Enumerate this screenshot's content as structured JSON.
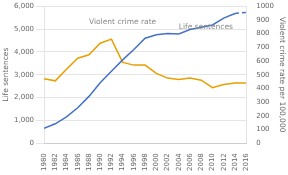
{
  "chart_data": {
    "type": "line",
    "x": [
      1980,
      1982,
      1984,
      1986,
      1988,
      1990,
      1992,
      1994,
      1996,
      1998,
      2000,
      2002,
      2004,
      2006,
      2008,
      2010,
      2012,
      2014,
      2016
    ],
    "xlim": [
      1980,
      2016
    ],
    "xticks": [
      1980,
      1982,
      1984,
      1986,
      1988,
      1990,
      1992,
      1994,
      1996,
      1998,
      2000,
      2002,
      2004,
      2006,
      2008,
      2010,
      2012,
      2014,
      2016
    ],
    "ylabel": "Life sentences",
    "ylim": [
      0,
      6000
    ],
    "yticks": [
      0,
      {
        "value": 1000,
        "label": "1,000"
      },
      {
        "value": 2000,
        "label": "2,000"
      },
      {
        "value": 3000,
        "label": "3,000"
      },
      {
        "value": 4000,
        "label": "4,000"
      },
      {
        "value": 5000,
        "label": "5,000"
      },
      {
        "value": 6000,
        "label": "6,000"
      }
    ],
    "y2label": "Violent crime rate per 100,000",
    "y2lim": [
      0,
      1000
    ],
    "y2ticks": [
      0,
      100,
      200,
      300,
      400,
      500,
      600,
      700,
      800,
      900,
      1000
    ],
    "grid": "y",
    "series": [
      {
        "name": "Life sentences",
        "color": "#4472C4",
        "line_style": "solid",
        "values": [
          650,
          850,
          1150,
          1550,
          2050,
          2650,
          3150,
          3650,
          4100,
          4600,
          4750,
          4800,
          4780,
          4980,
          5080,
          5180,
          5480,
          5680,
          null
        ]
      },
      {
        "name": "Life sentences",
        "color": "#4472C4",
        "line_style": "dashed",
        "values": [
          null,
          null,
          null,
          null,
          null,
          null,
          null,
          null,
          null,
          null,
          null,
          null,
          null,
          null,
          null,
          null,
          null,
          5680,
          5730
        ]
      },
      {
        "name": "Violent crime rate",
        "color": "#E8A000",
        "line_style": "solid",
        "axis": "y2",
        "values": [
          470,
          455,
          540,
          620,
          645,
          730,
          760,
          590,
          570,
          570,
          510,
          475,
          465,
          475,
          460,
          405,
          428,
          440,
          440
        ]
      }
    ],
    "annotations": [
      {
        "text": "Violent crime rate",
        "x": 1988,
        "y": 5300,
        "color": "#888888"
      },
      {
        "text": "Life sentences",
        "x": 2004,
        "y": 5100,
        "color": "#888888"
      }
    ]
  }
}
